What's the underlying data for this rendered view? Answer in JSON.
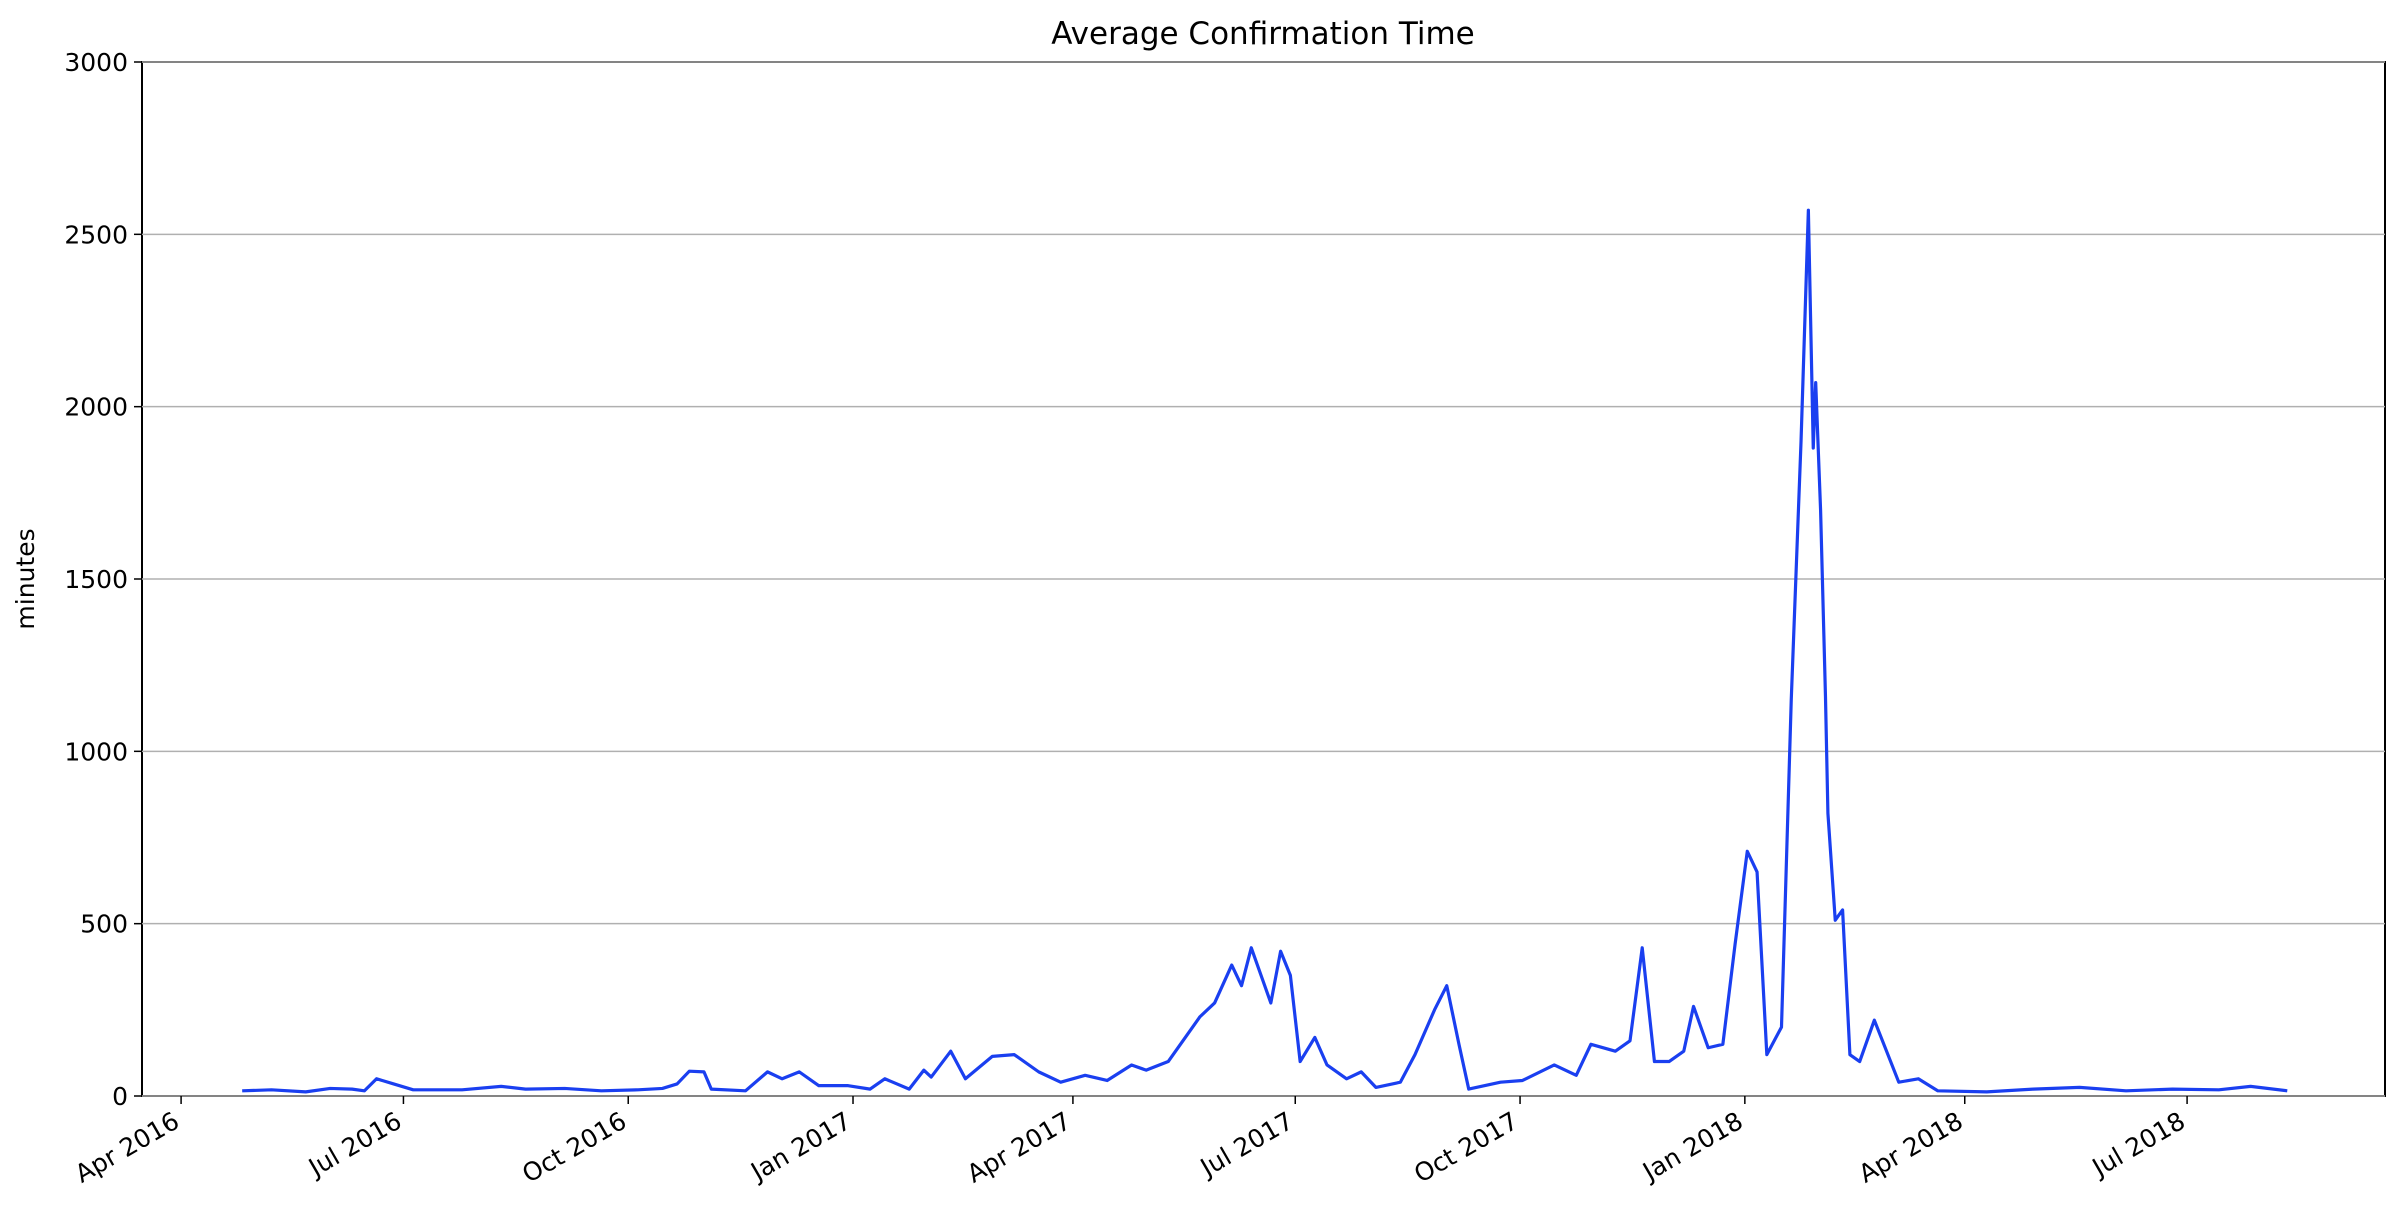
{
  "chart_data": {
    "type": "line",
    "title": "Average Confirmation Time",
    "y_label": "minutes",
    "grid": "y",
    "xlim": [
      "2016-03-16",
      "2018-09-20"
    ],
    "xticks": [
      {
        "value": "2016-04-01",
        "label": "Apr 2016"
      },
      {
        "value": "2016-07-01",
        "label": "Jul 2016"
      },
      {
        "value": "2016-10-01",
        "label": "Oct 2016"
      },
      {
        "value": "2017-01-01",
        "label": "Jan 2017"
      },
      {
        "value": "2017-04-01",
        "label": "Apr 2017"
      },
      {
        "value": "2017-07-01",
        "label": "Jul 2017"
      },
      {
        "value": "2017-10-01",
        "label": "Oct 2017"
      },
      {
        "value": "2018-01-01",
        "label": "Jan 2018"
      },
      {
        "value": "2018-04-01",
        "label": "Apr 2018"
      },
      {
        "value": "2018-07-01",
        "label": "Jul 2018"
      }
    ],
    "ylim": [
      0,
      3000
    ],
    "yticks": [
      0,
      500,
      1000,
      1500,
      2000,
      2500,
      3000
    ],
    "x": [
      "2016-04-26",
      "2016-05-08",
      "2016-05-22",
      "2016-06-01",
      "2016-06-10",
      "2016-06-15",
      "2016-06-20",
      "2016-06-27",
      "2016-07-05",
      "2016-07-25",
      "2016-08-10",
      "2016-08-20",
      "2016-09-05",
      "2016-09-20",
      "2016-10-05",
      "2016-10-15",
      "2016-10-21",
      "2016-10-26",
      "2016-11-01",
      "2016-11-04",
      "2016-11-18",
      "2016-11-27",
      "2016-12-03",
      "2016-12-10",
      "2016-12-18",
      "2016-12-30",
      "2017-01-08",
      "2017-01-14",
      "2017-01-24",
      "2017-01-30",
      "2017-02-02",
      "2017-02-10",
      "2017-02-16",
      "2017-02-27",
      "2017-03-08",
      "2017-03-18",
      "2017-03-27",
      "2017-04-06",
      "2017-04-15",
      "2017-04-25",
      "2017-05-01",
      "2017-05-10",
      "2017-05-17",
      "2017-05-23",
      "2017-05-29",
      "2017-06-05",
      "2017-06-09",
      "2017-06-13",
      "2017-06-17",
      "2017-06-21",
      "2017-06-25",
      "2017-06-29",
      "2017-07-03",
      "2017-07-09",
      "2017-07-14",
      "2017-07-22",
      "2017-07-28",
      "2017-08-03",
      "2017-08-13",
      "2017-08-19",
      "2017-08-27",
      "2017-09-01",
      "2017-09-06",
      "2017-09-10",
      "2017-09-23",
      "2017-10-02",
      "2017-10-15",
      "2017-10-24",
      "2017-10-30",
      "2017-11-09",
      "2017-11-15",
      "2017-11-20",
      "2017-11-25",
      "2017-12-01",
      "2017-12-07",
      "2017-12-11",
      "2017-12-17",
      "2017-12-23",
      "2017-12-28",
      "2018-01-02",
      "2018-01-06",
      "2018-01-10",
      "2018-01-16",
      "2018-01-20",
      "2018-01-24",
      "2018-01-27",
      "2018-01-29",
      "2018-01-30",
      "2018-02-01",
      "2018-02-03",
      "2018-02-04",
      "2018-02-07",
      "2018-02-10",
      "2018-02-13",
      "2018-02-17",
      "2018-02-23",
      "2018-02-28",
      "2018-03-05",
      "2018-03-13",
      "2018-03-21",
      "2018-04-10",
      "2018-04-29",
      "2018-05-18",
      "2018-06-06",
      "2018-06-25",
      "2018-07-14",
      "2018-07-27",
      "2018-08-11"
    ],
    "series": [
      {
        "name": "minutes",
        "color": "#1a3ff0",
        "values": [
          15,
          18,
          12,
          22,
          20,
          15,
          50,
          35,
          18,
          18,
          28,
          20,
          22,
          15,
          18,
          22,
          35,
          72,
          70,
          20,
          15,
          70,
          50,
          70,
          30,
          30,
          20,
          50,
          20,
          75,
          55,
          130,
          50,
          115,
          120,
          70,
          40,
          60,
          45,
          90,
          75,
          100,
          170,
          230,
          270,
          380,
          320,
          430,
          350,
          270,
          420,
          350,
          100,
          170,
          90,
          50,
          70,
          25,
          40,
          120,
          250,
          320,
          150,
          20,
          40,
          45,
          90,
          60,
          150,
          130,
          160,
          430,
          100,
          100,
          130,
          260,
          140,
          150,
          440,
          710,
          650,
          120,
          200,
          1150,
          1900,
          2570,
          1880,
          2070,
          1700,
          1160,
          820,
          510,
          540,
          120,
          100,
          220,
          130,
          40,
          50,
          15,
          12,
          20,
          25,
          15,
          20,
          18,
          28,
          15
        ]
      }
    ]
  }
}
